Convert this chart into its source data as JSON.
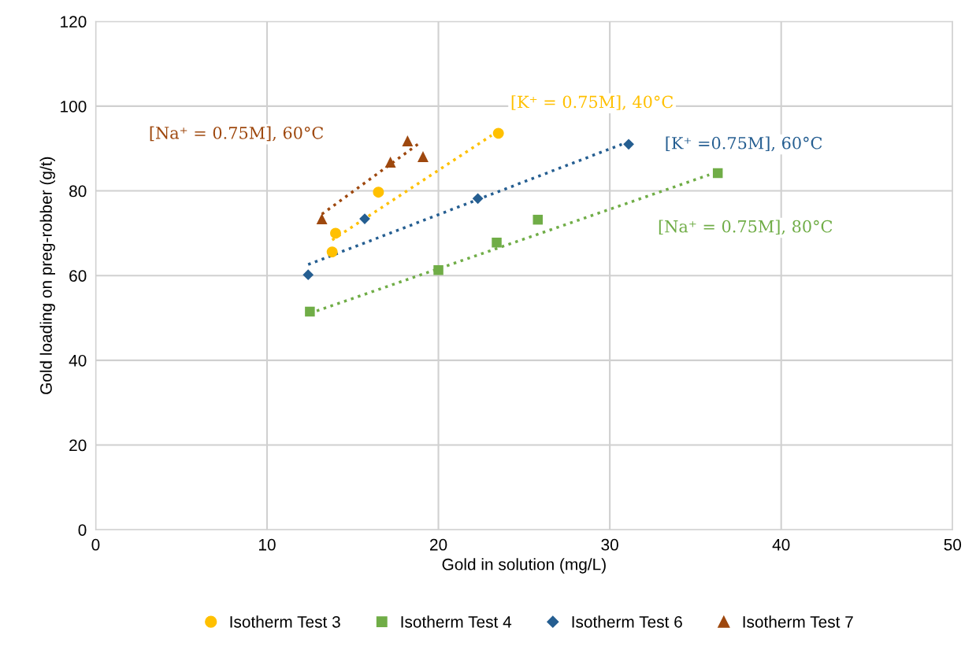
{
  "chart_data": {
    "type": "scatter",
    "xlabel": "Gold in solution (mg/L)",
    "ylabel": "Gold loading on preg-robber (g/t)",
    "xlim": [
      0,
      50
    ],
    "xticks": [
      0,
      10,
      20,
      30,
      40,
      50
    ],
    "ylim": [
      0,
      120
    ],
    "yticks": [
      0,
      20,
      40,
      60,
      80,
      100,
      120
    ],
    "grid": true,
    "legend": "bottom",
    "series": [
      {
        "name": "Isotherm Test 3",
        "color": "#ffc000",
        "marker": "circle",
        "x": [
          13.8,
          14.0,
          16.5,
          23.5
        ],
        "values": [
          65.6,
          70.0,
          79.7,
          93.6
        ]
      },
      {
        "name": "Isotherm Test 4",
        "color": "#70ad47",
        "marker": "square",
        "x": [
          12.5,
          20.0,
          23.4,
          25.8,
          36.3
        ],
        "values": [
          51.5,
          61.3,
          67.8,
          73.2,
          84.2
        ]
      },
      {
        "name": "Isotherm Test 6",
        "color": "#255e91",
        "marker": "diamond",
        "x": [
          12.4,
          15.7,
          22.3,
          31.1
        ],
        "values": [
          60.2,
          73.4,
          78.2,
          91.0
        ]
      },
      {
        "name": "Isotherm Test 7",
        "color": "#9e480e",
        "marker": "triangle",
        "x": [
          13.2,
          17.2,
          18.2,
          19.1
        ],
        "values": [
          73.4,
          86.8,
          91.8,
          88.1
        ]
      },
      {
        "type": "line",
        "color": "#9e480e",
        "line_style": "dotted",
        "marker": "none",
        "x": [
          13.2,
          18.8
        ],
        "values": [
          74.5,
          91.0
        ]
      },
      {
        "type": "line",
        "color": "#ffc000",
        "line_style": "dotted",
        "marker": "none",
        "x": [
          13.8,
          23.1
        ],
        "values": [
          68.4,
          93.1
        ]
      },
      {
        "type": "line",
        "color": "#255e91",
        "line_style": "dotted",
        "marker": "none",
        "x": [
          12.4,
          30.7
        ],
        "values": [
          62.6,
          91.0
        ]
      },
      {
        "type": "line",
        "color": "#70ad47",
        "line_style": "dotted",
        "marker": "none",
        "x": [
          12.5,
          35.8
        ],
        "values": [
          51.1,
          83.8
        ]
      }
    ],
    "annotations": [
      "[Na⁺ = 0.75M], 60°C",
      "[K⁺ = 0.75M], 40°C",
      "[K⁺ =0.75M], 60°C",
      "[Na⁺ = 0.75M], 80°C"
    ]
  }
}
